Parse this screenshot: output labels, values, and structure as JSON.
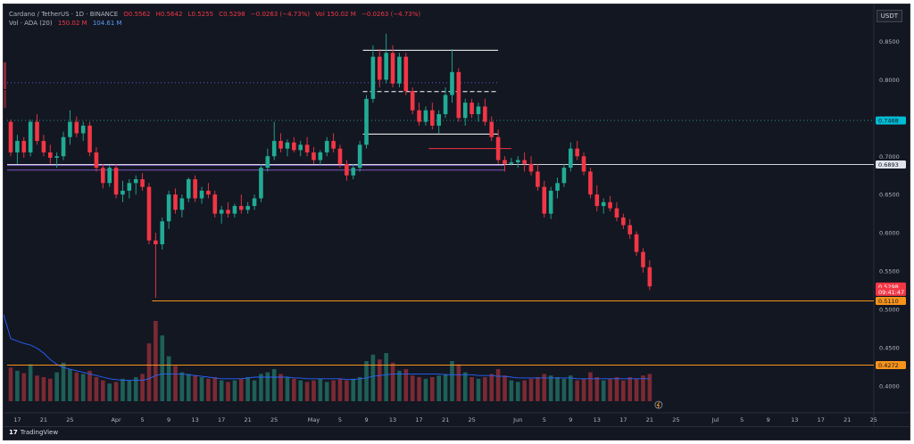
{
  "header": {
    "symbol": "Cardano / TetherUS · 1D · BINANCE",
    "open": "O0.5562",
    "high": "H0.5642",
    "low": "L0.5255",
    "close": "C0.5298",
    "change": "−0.0263 (−4.73%)",
    "volume_label": "Vol 150.02 M",
    "volume_change": "−0.0263 (−4.73%)"
  },
  "volume_legend": {
    "title": "Vol · ADA (20)",
    "value1": "150.02 M",
    "value2": "104.61 M"
  },
  "currency": "USDT",
  "footer": {
    "brand": "TradingView",
    "logo": "17"
  },
  "colors": {
    "up": "#22ab94",
    "down": "#f23645",
    "volume_up": "#1e5f57",
    "volume_down": "#7a2a33",
    "ma": "#2962ff",
    "orange_line": "#f7931a",
    "purple_line": "#7e57c2",
    "white_line": "#d1d4dc"
  },
  "chart_data": {
    "type": "candlestick",
    "price_axis": {
      "ylim": [
        0.38,
        0.875
      ],
      "ticks": [
        "0.8500",
        "0.8000",
        "0.7500",
        "0.7000",
        "0.6500",
        "0.6000",
        "0.5500",
        "0.5000",
        "0.4500",
        "0.4000"
      ]
    },
    "price_labels": [
      {
        "text": "0.7468",
        "value": 0.7468,
        "color": "#00bcd4"
      },
      {
        "text": "0.6893",
        "value": 0.6893,
        "color": "#e0e3eb"
      },
      {
        "text": "0.5298",
        "value": 0.5298,
        "color": "#f23645"
      },
      {
        "text": "09:41:47",
        "value": 0.5228,
        "color": "#f23645"
      },
      {
        "text": "0.5110",
        "value": 0.511,
        "color": "#f7931a"
      },
      {
        "text": "0.4272",
        "value": 0.4272,
        "color": "#f7931a"
      }
    ],
    "x_labels": [
      {
        "text": "17",
        "index": 1
      },
      {
        "text": "21",
        "index": 5
      },
      {
        "text": "25",
        "index": 9
      },
      {
        "text": "Apr",
        "index": 16
      },
      {
        "text": "5",
        "index": 20
      },
      {
        "text": "9",
        "index": 24
      },
      {
        "text": "13",
        "index": 28
      },
      {
        "text": "17",
        "index": 32
      },
      {
        "text": "21",
        "index": 36
      },
      {
        "text": "25",
        "index": 40
      },
      {
        "text": "May",
        "index": 46
      },
      {
        "text": "5",
        "index": 50
      },
      {
        "text": "9",
        "index": 54
      },
      {
        "text": "13",
        "index": 58
      },
      {
        "text": "17",
        "index": 62
      },
      {
        "text": "21",
        "index": 66
      },
      {
        "text": "25",
        "index": 70
      },
      {
        "text": "Jun",
        "index": 77
      },
      {
        "text": "5",
        "index": 81
      },
      {
        "text": "9",
        "index": 85
      },
      {
        "text": "13",
        "index": 89
      },
      {
        "text": "17",
        "index": 93
      },
      {
        "text": "21",
        "index": 97
      },
      {
        "text": "25",
        "index": 101
      },
      {
        "text": "Jul",
        "index": 107
      },
      {
        "text": "5",
        "index": 111
      },
      {
        "text": "9",
        "index": 115
      },
      {
        "text": "13",
        "index": 119
      },
      {
        "text": "17",
        "index": 123
      },
      {
        "text": "21",
        "index": 127
      },
      {
        "text": "25",
        "index": 131
      }
    ],
    "candles": [
      [
        0.745,
        0.748,
        0.7,
        0.705
      ],
      [
        0.705,
        0.728,
        0.69,
        0.72
      ],
      [
        0.72,
        0.725,
        0.698,
        0.705
      ],
      [
        0.705,
        0.748,
        0.7,
        0.745
      ],
      [
        0.745,
        0.755,
        0.715,
        0.72
      ],
      [
        0.72,
        0.728,
        0.7,
        0.705
      ],
      [
        0.705,
        0.715,
        0.69,
        0.698
      ],
      [
        0.698,
        0.705,
        0.685,
        0.7
      ],
      [
        0.7,
        0.732,
        0.695,
        0.725
      ],
      [
        0.725,
        0.76,
        0.715,
        0.745
      ],
      [
        0.745,
        0.752,
        0.725,
        0.73
      ],
      [
        0.73,
        0.745,
        0.72,
        0.74
      ],
      [
        0.74,
        0.745,
        0.7,
        0.705
      ],
      [
        0.705,
        0.712,
        0.68,
        0.685
      ],
      [
        0.685,
        0.69,
        0.658,
        0.665
      ],
      [
        0.665,
        0.688,
        0.66,
        0.685
      ],
      [
        0.685,
        0.69,
        0.645,
        0.65
      ],
      [
        0.65,
        0.668,
        0.64,
        0.655
      ],
      [
        0.655,
        0.67,
        0.645,
        0.665
      ],
      [
        0.665,
        0.675,
        0.65,
        0.67
      ],
      [
        0.67,
        0.678,
        0.655,
        0.66
      ],
      [
        0.66,
        0.665,
        0.585,
        0.59
      ],
      [
        0.59,
        0.6,
        0.515,
        0.585
      ],
      [
        0.585,
        0.62,
        0.578,
        0.615
      ],
      [
        0.615,
        0.655,
        0.605,
        0.65
      ],
      [
        0.65,
        0.658,
        0.625,
        0.63
      ],
      [
        0.63,
        0.65,
        0.62,
        0.645
      ],
      [
        0.645,
        0.672,
        0.64,
        0.67
      ],
      [
        0.67,
        0.675,
        0.64,
        0.645
      ],
      [
        0.645,
        0.66,
        0.638,
        0.655
      ],
      [
        0.655,
        0.665,
        0.645,
        0.65
      ],
      [
        0.65,
        0.655,
        0.62,
        0.625
      ],
      [
        0.625,
        0.635,
        0.612,
        0.63
      ],
      [
        0.63,
        0.64,
        0.62,
        0.625
      ],
      [
        0.625,
        0.638,
        0.62,
        0.635
      ],
      [
        0.635,
        0.65,
        0.625,
        0.63
      ],
      [
        0.63,
        0.64,
        0.625,
        0.635
      ],
      [
        0.635,
        0.65,
        0.63,
        0.645
      ],
      [
        0.645,
        0.69,
        0.64,
        0.685
      ],
      [
        0.685,
        0.71,
        0.68,
        0.7
      ],
      [
        0.7,
        0.745,
        0.695,
        0.72
      ],
      [
        0.72,
        0.73,
        0.705,
        0.71
      ],
      [
        0.71,
        0.722,
        0.7,
        0.718
      ],
      [
        0.718,
        0.725,
        0.705,
        0.708
      ],
      [
        0.708,
        0.72,
        0.7,
        0.715
      ],
      [
        0.715,
        0.725,
        0.7,
        0.705
      ],
      [
        0.705,
        0.712,
        0.69,
        0.695
      ],
      [
        0.695,
        0.708,
        0.688,
        0.705
      ],
      [
        0.705,
        0.725,
        0.7,
        0.72
      ],
      [
        0.72,
        0.73,
        0.705,
        0.71
      ],
      [
        0.71,
        0.715,
        0.685,
        0.69
      ],
      [
        0.69,
        0.695,
        0.668,
        0.675
      ],
      [
        0.675,
        0.69,
        0.67,
        0.685
      ],
      [
        0.685,
        0.72,
        0.68,
        0.715
      ],
      [
        0.715,
        0.78,
        0.71,
        0.775
      ],
      [
        0.775,
        0.845,
        0.77,
        0.83
      ],
      [
        0.83,
        0.84,
        0.79,
        0.8
      ],
      [
        0.8,
        0.86,
        0.795,
        0.835
      ],
      [
        0.835,
        0.845,
        0.79,
        0.795
      ],
      [
        0.795,
        0.835,
        0.79,
        0.83
      ],
      [
        0.83,
        0.835,
        0.78,
        0.785
      ],
      [
        0.785,
        0.79,
        0.755,
        0.76
      ],
      [
        0.76,
        0.77,
        0.74,
        0.745
      ],
      [
        0.745,
        0.765,
        0.74,
        0.76
      ],
      [
        0.76,
        0.77,
        0.735,
        0.74
      ],
      [
        0.74,
        0.76,
        0.73,
        0.755
      ],
      [
        0.755,
        0.79,
        0.75,
        0.78
      ],
      [
        0.78,
        0.84,
        0.77,
        0.81
      ],
      [
        0.81,
        0.815,
        0.745,
        0.75
      ],
      [
        0.75,
        0.775,
        0.74,
        0.77
      ],
      [
        0.77,
        0.775,
        0.75,
        0.755
      ],
      [
        0.755,
        0.77,
        0.745,
        0.765
      ],
      [
        0.765,
        0.775,
        0.74,
        0.745
      ],
      [
        0.745,
        0.752,
        0.72,
        0.725
      ],
      [
        0.725,
        0.735,
        0.69,
        0.695
      ],
      [
        0.695,
        0.7,
        0.68,
        0.69
      ],
      [
        0.69,
        0.698,
        0.688,
        0.692
      ],
      [
        0.692,
        0.7,
        0.685,
        0.695
      ],
      [
        0.695,
        0.705,
        0.68,
        0.69
      ],
      [
        0.69,
        0.7,
        0.675,
        0.68
      ],
      [
        0.68,
        0.69,
        0.655,
        0.66
      ],
      [
        0.66,
        0.668,
        0.62,
        0.625
      ],
      [
        0.625,
        0.66,
        0.618,
        0.655
      ],
      [
        0.655,
        0.672,
        0.645,
        0.665
      ],
      [
        0.665,
        0.69,
        0.66,
        0.685
      ],
      [
        0.685,
        0.718,
        0.68,
        0.71
      ],
      [
        0.71,
        0.72,
        0.695,
        0.7
      ],
      [
        0.7,
        0.705,
        0.675,
        0.68
      ],
      [
        0.68,
        0.685,
        0.645,
        0.65
      ],
      [
        0.65,
        0.662,
        0.628,
        0.635
      ],
      [
        0.635,
        0.645,
        0.625,
        0.64
      ],
      [
        0.64,
        0.648,
        0.628,
        0.632
      ],
      [
        0.632,
        0.64,
        0.615,
        0.62
      ],
      [
        0.62,
        0.625,
        0.605,
        0.61
      ],
      [
        0.61,
        0.618,
        0.592,
        0.598
      ],
      [
        0.598,
        0.602,
        0.57,
        0.575
      ],
      [
        0.575,
        0.58,
        0.548,
        0.555
      ],
      [
        0.555,
        0.564,
        0.525,
        0.53
      ]
    ],
    "volumes": [
      0.42,
      0.38,
      0.35,
      0.46,
      0.32,
      0.3,
      0.28,
      0.36,
      0.48,
      0.4,
      0.36,
      0.34,
      0.38,
      0.3,
      0.26,
      0.22,
      0.24,
      0.28,
      0.26,
      0.3,
      0.34,
      0.72,
      1.0,
      0.82,
      0.56,
      0.44,
      0.36,
      0.34,
      0.32,
      0.3,
      0.28,
      0.3,
      0.26,
      0.24,
      0.26,
      0.28,
      0.3,
      0.26,
      0.34,
      0.36,
      0.4,
      0.34,
      0.3,
      0.28,
      0.26,
      0.24,
      0.26,
      0.28,
      0.24,
      0.26,
      0.28,
      0.26,
      0.28,
      0.3,
      0.5,
      0.58,
      0.52,
      0.6,
      0.48,
      0.38,
      0.4,
      0.32,
      0.3,
      0.28,
      0.3,
      0.32,
      0.34,
      0.5,
      0.46,
      0.36,
      0.3,
      0.28,
      0.3,
      0.34,
      0.4,
      0.32,
      0.26,
      0.24,
      0.26,
      0.28,
      0.3,
      0.34,
      0.32,
      0.3,
      0.28,
      0.32,
      0.26,
      0.28,
      0.36,
      0.3,
      0.26,
      0.28,
      0.3,
      0.26,
      0.3,
      0.28,
      0.32,
      0.34
    ],
    "volume_ma": [
      0.78,
      0.75,
      0.72,
      0.7,
      0.66,
      0.6,
      0.52,
      0.46,
      0.42,
      0.4,
      0.38,
      0.36,
      0.34,
      0.32,
      0.3,
      0.28,
      0.27,
      0.26,
      0.26,
      0.26,
      0.26,
      0.28,
      0.32,
      0.34,
      0.34,
      0.34,
      0.34,
      0.33,
      0.32,
      0.31,
      0.3,
      0.29,
      0.28,
      0.28,
      0.28,
      0.28,
      0.29,
      0.3,
      0.3,
      0.3,
      0.3,
      0.3,
      0.3,
      0.29,
      0.29,
      0.28,
      0.28,
      0.28,
      0.28,
      0.28,
      0.28,
      0.27,
      0.27,
      0.28,
      0.29,
      0.31,
      0.32,
      0.33,
      0.34,
      0.34,
      0.34,
      0.34,
      0.34,
      0.34,
      0.34,
      0.34,
      0.33,
      0.33,
      0.33,
      0.33,
      0.33,
      0.32,
      0.32,
      0.32,
      0.31,
      0.31,
      0.3,
      0.29,
      0.29,
      0.29,
      0.29,
      0.29,
      0.29,
      0.29,
      0.29,
      0.29,
      0.28,
      0.28,
      0.28,
      0.28,
      0.28,
      0.28,
      0.28,
      0.28,
      0.28,
      0.28,
      0.28,
      0.28
    ],
    "lines": [
      {
        "name": "support-orange",
        "value": 0.511,
        "from_index": 22,
        "color": "#f7931a",
        "style": "solid"
      },
      {
        "name": "level-orange-low",
        "value": 0.4272,
        "from_index": 0,
        "color": "#f7931a",
        "style": "solid"
      },
      {
        "name": "level-white",
        "value": 0.6893,
        "from_index": 0,
        "color": "#d1d4dc",
        "style": "solid"
      },
      {
        "name": "purple-upper",
        "value": 0.688,
        "from_index": 0,
        "to_index": 75,
        "color": "#7e57c2",
        "style": "solid"
      },
      {
        "name": "purple-lower",
        "value": 0.682,
        "from_index": 0,
        "to_index": 75,
        "color": "#7e57c2",
        "style": "solid"
      },
      {
        "name": "box-top",
        "value": 0.8385,
        "from_index": 54,
        "to_index": 74,
        "color": "#ffffff",
        "style": "solid"
      },
      {
        "name": "box-mid",
        "value": 0.7845,
        "from_index": 54,
        "to_index": 74,
        "color": "#ffffff",
        "style": "dashed"
      },
      {
        "name": "box-bottom",
        "value": 0.729,
        "from_index": 54,
        "to_index": 74,
        "color": "#ffffff",
        "style": "solid"
      },
      {
        "name": "red-mark",
        "value": 0.71,
        "from_index": 64,
        "to_index": 76,
        "color": "#f23645",
        "style": "solid"
      },
      {
        "name": "dotted-blue",
        "value": 0.796,
        "from_index": 0,
        "to_index": 74,
        "color": "#5b6bd6",
        "style": "dotted"
      },
      {
        "name": "dotted-teal",
        "value": 0.7468,
        "from_index": 0,
        "to_index": 131,
        "color": "#26a69a",
        "style": "dotted"
      }
    ]
  }
}
